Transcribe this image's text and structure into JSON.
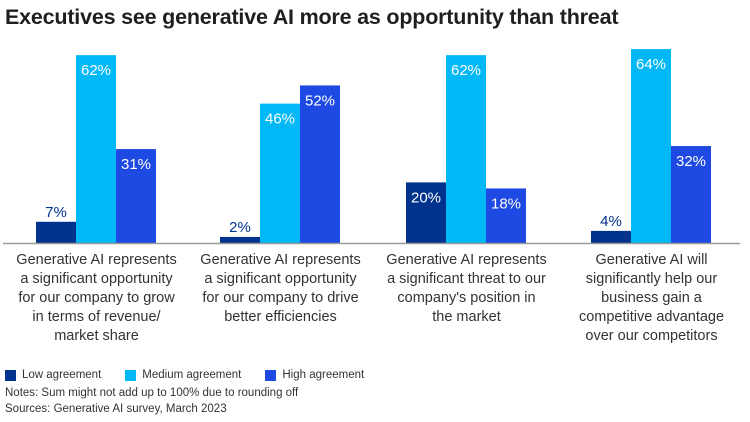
{
  "chart_data": {
    "type": "bar",
    "title": "Executives see generative AI more as opportunity than threat",
    "categories": [
      "Generative AI represents\na significant opportunity\nfor our company to grow\nin terms of revenue/\nmarket share",
      "Generative AI represents\na significant opportunity\nfor our company to drive\nbetter efficiencies",
      "Generative AI represents\na significant threat to our\ncompany's position in\nthe market",
      "Generative AI will\nsignificantly help our\nbusiness gain a\ncompetitive advantage\nover our competitors"
    ],
    "series": [
      {
        "name": "Low agreement",
        "color": "#00338D",
        "values": [
          7,
          2,
          20,
          4
        ]
      },
      {
        "name": "Medium agreement",
        "color": "#00B8F5",
        "values": [
          62,
          46,
          62,
          64
        ]
      },
      {
        "name": "High agreement",
        "color": "#1E49E2",
        "values": [
          31,
          52,
          18,
          32
        ]
      }
    ],
    "value_suffix": "%",
    "ylim": [
      0,
      65
    ],
    "grid": false,
    "legend_position": "bottom-left",
    "notes": "Notes: Sum might not add up to 100% due to rounding off",
    "sources": "Sources: Generative AI survey, March 2023"
  }
}
